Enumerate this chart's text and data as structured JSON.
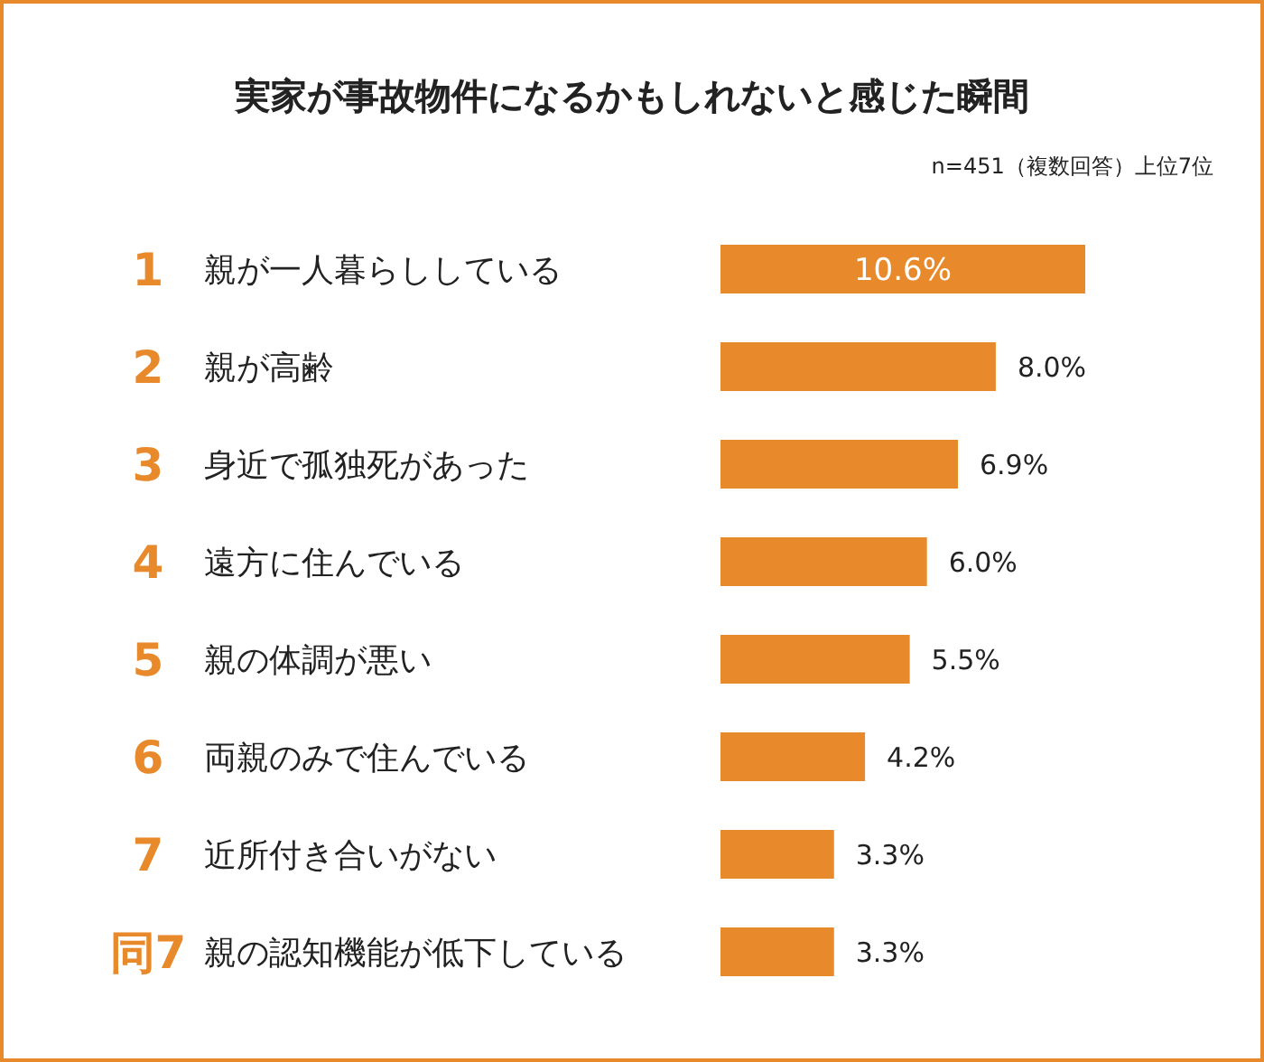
{
  "chart_data": {
    "type": "bar",
    "orientation": "horizontal",
    "title": "実家が事故物件になるかもしれないと感じた瞬間",
    "subtitle": "n=451（複数回答）上位7位",
    "categories": [
      "親が一人暮らししている",
      "親が高齢",
      "身近で孤独死があった",
      "遠方に住んでいる",
      "親の体調が悪い",
      "両親のみで住んでいる",
      "近所付き合いがない",
      "親の認知機能が低下している"
    ],
    "annotations": [
      "1",
      "2",
      "3",
      "4",
      "5",
      "6",
      "7",
      "同7"
    ],
    "values": [
      10.6,
      8.0,
      6.9,
      6.0,
      5.5,
      4.2,
      3.3,
      3.3
    ],
    "value_labels": [
      "10.6%",
      "8.0%",
      "6.9%",
      "6.0%",
      "5.5%",
      "4.2%",
      "3.3%",
      "3.3%"
    ],
    "color": "#e88a2c"
  }
}
